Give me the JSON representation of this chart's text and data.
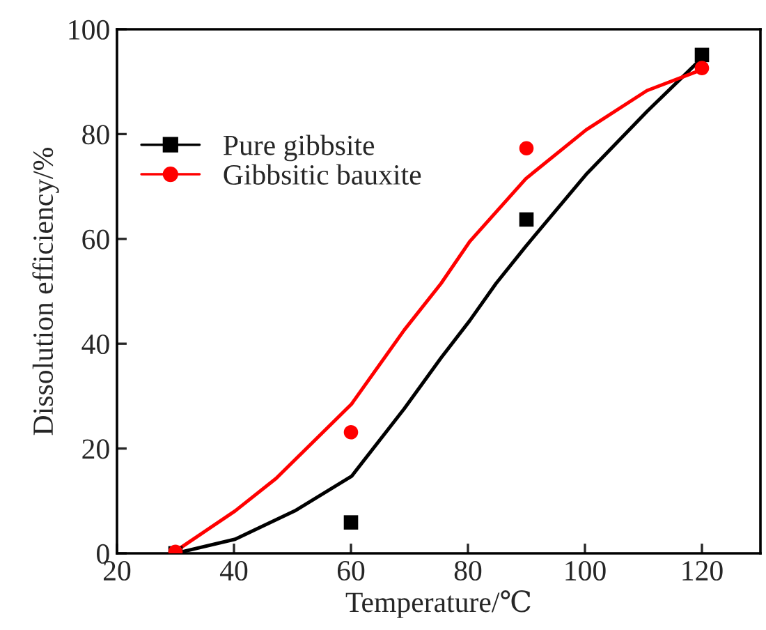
{
  "chart_data": {
    "type": "scatter",
    "xlabel": "Temperature/℃",
    "ylabel": "Dissolution efficiency/%",
    "xlim": [
      20,
      130
    ],
    "ylim": [
      0,
      100
    ],
    "xticks": [
      20,
      40,
      60,
      80,
      100,
      120
    ],
    "yticks": [
      0,
      20,
      40,
      60,
      80,
      100
    ],
    "grid": false,
    "legend": "top left",
    "series": [
      {
        "name": "Pure gibbsite",
        "marker": "square",
        "color": "#000000",
        "x": [
          30,
          60,
          90,
          120
        ],
        "values": [
          0,
          5.9,
          63.7,
          95.1
        ]
      },
      {
        "name": "Gibbsitic bauxite",
        "marker": "circle",
        "color": "#ff0000",
        "x": [
          30,
          60,
          90,
          120
        ],
        "values": [
          0.3,
          23.1,
          77.3,
          92.6
        ]
      },
      {
        "type": "line",
        "marker": "none",
        "color": "#000000",
        "x": [
          30,
          40.2,
          50.4,
          60.1,
          69.1,
          75.4,
          80.3,
          84.8,
          89.9,
          100.2,
          110.6,
          120
        ],
        "values": [
          0,
          2.7,
          8.1,
          14.7,
          27.6,
          37.3,
          44.4,
          51.5,
          58.6,
          72.3,
          84.3,
          94.5
        ]
      },
      {
        "type": "line",
        "marker": "none",
        "color": "#ff0000",
        "x": [
          30,
          40.2,
          47.2,
          60.1,
          69.1,
          75.4,
          80.3,
          89.9,
          100.2,
          110.6,
          120
        ],
        "values": [
          0.4,
          8.1,
          14.3,
          28.5,
          42.6,
          51.5,
          59.5,
          71.5,
          80.8,
          88.3,
          92.3
        ]
      }
    ]
  }
}
